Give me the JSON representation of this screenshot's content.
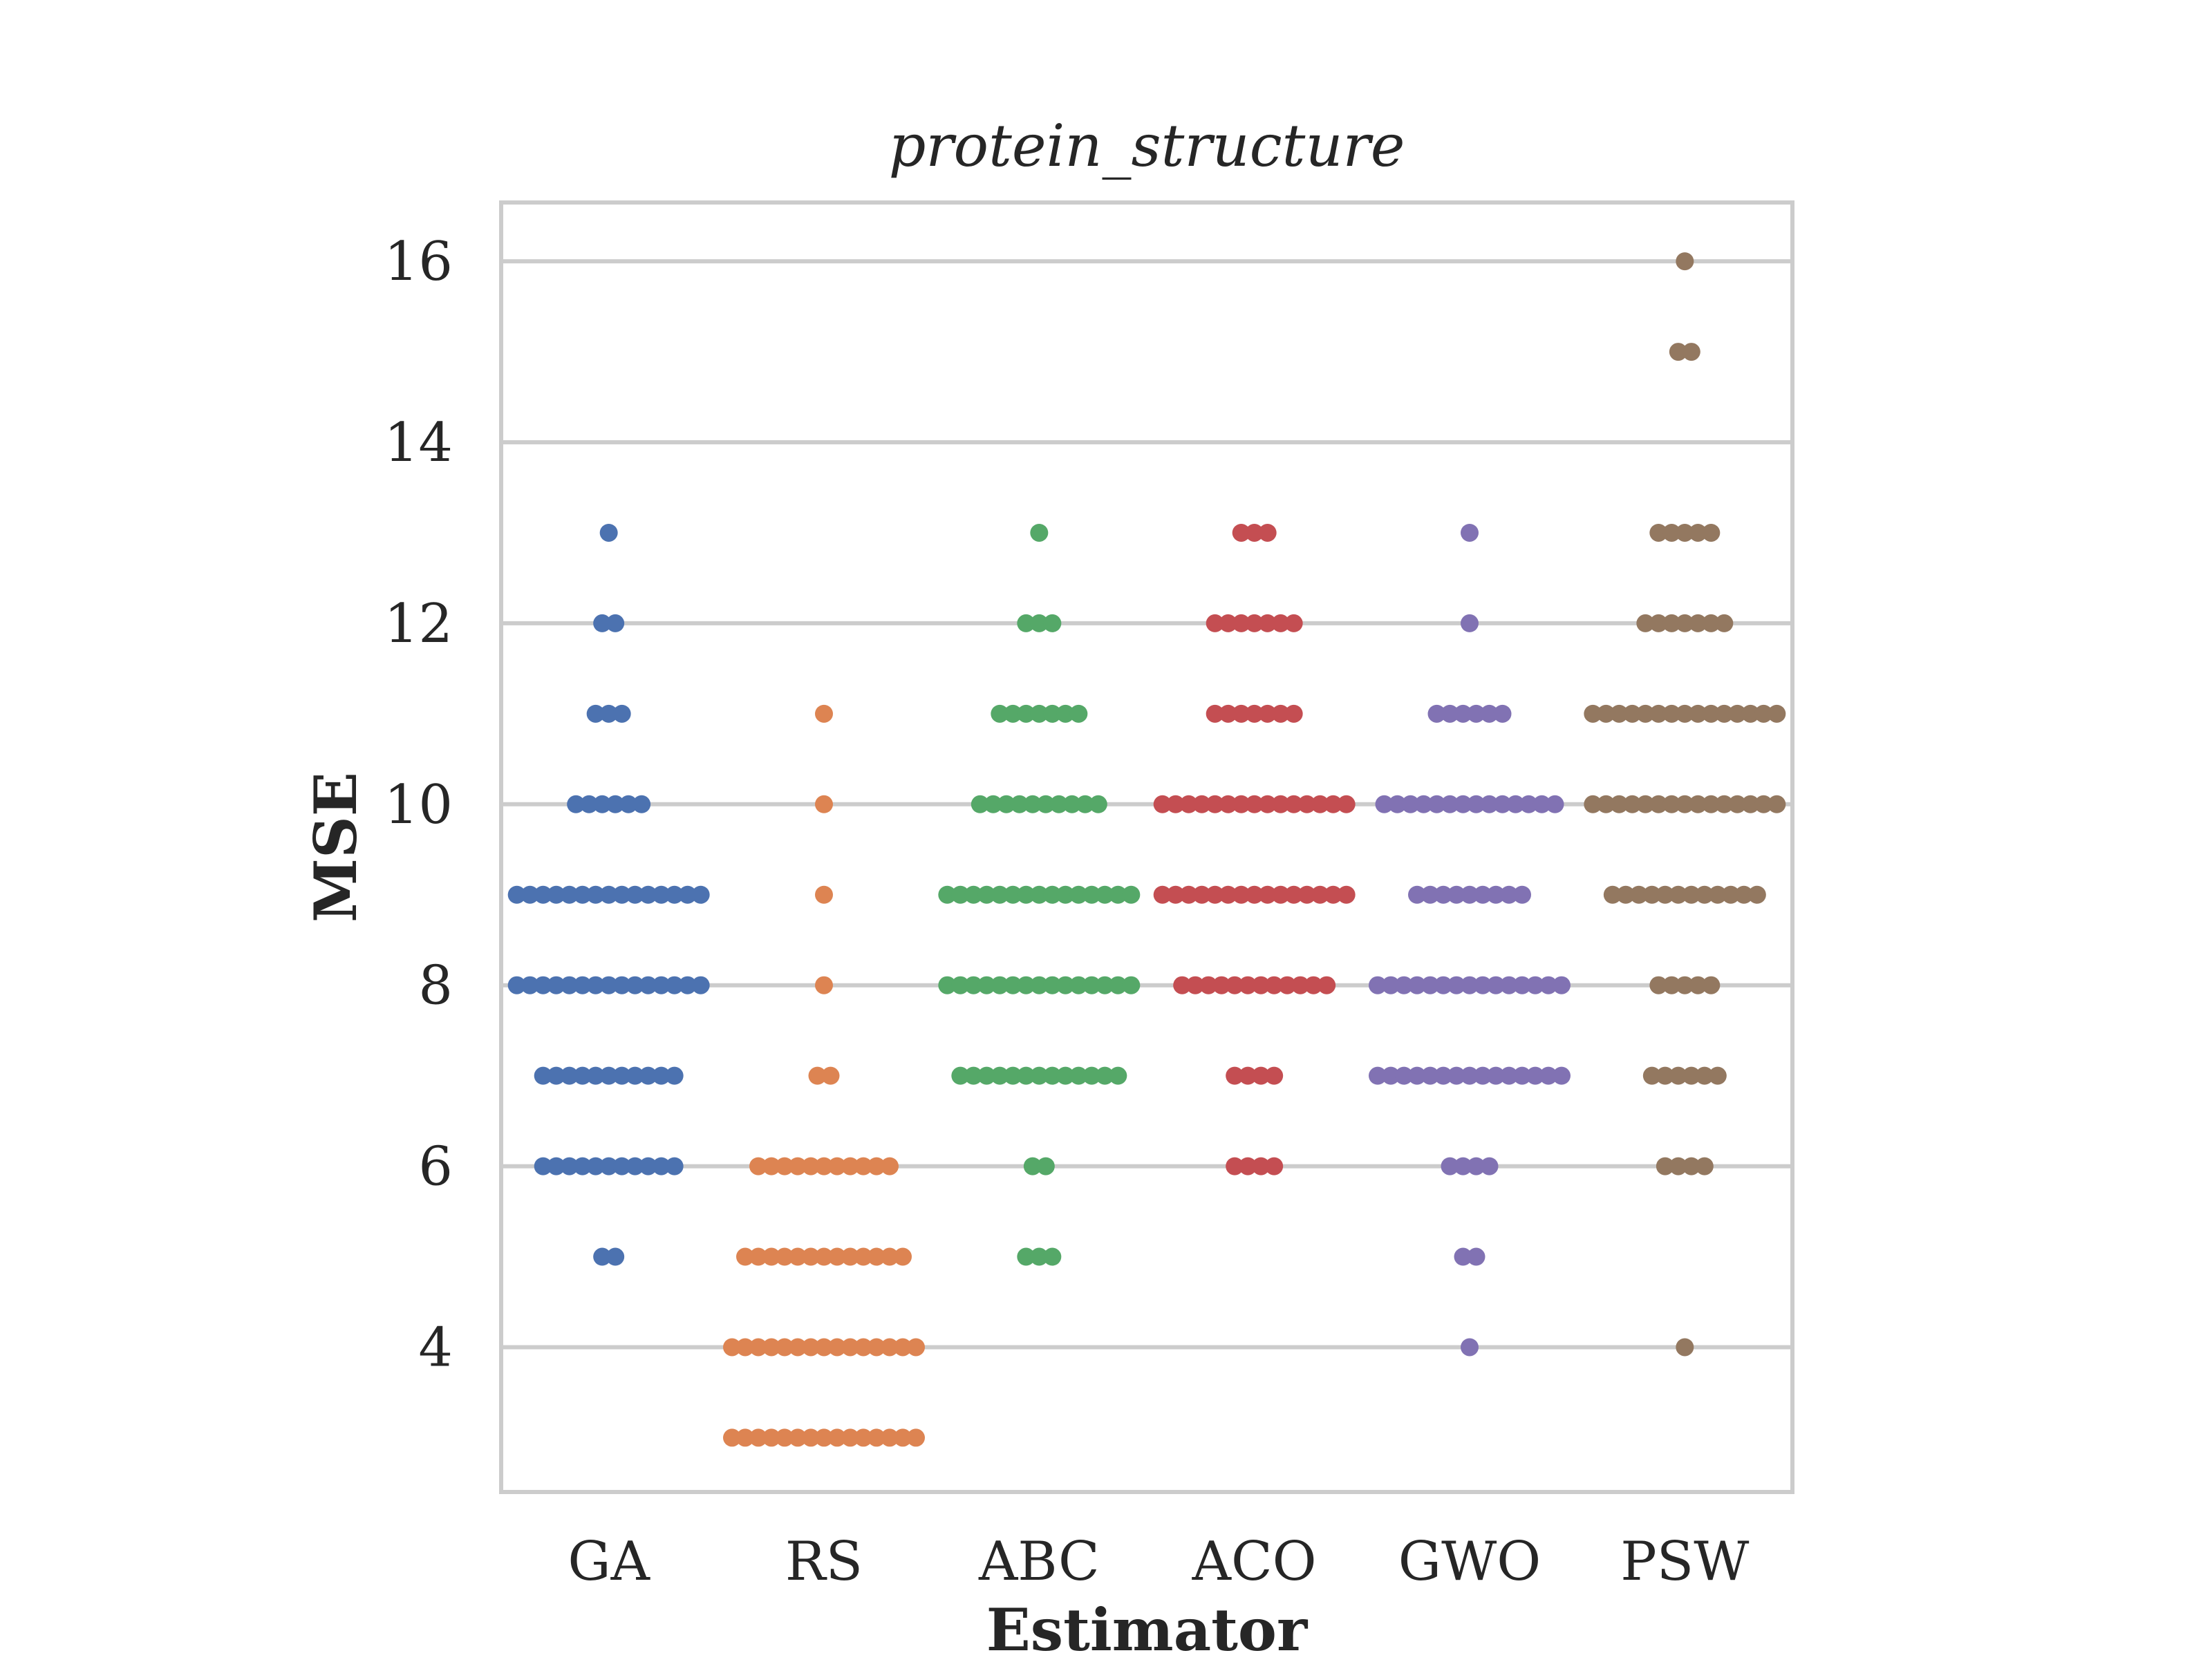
{
  "chart_data": {
    "type": "scatter",
    "subtype": "swarm",
    "title": "protein_structure",
    "xlabel": "Estimator",
    "ylabel": "MSE",
    "categories": [
      "GA",
      "RS",
      "ABC",
      "ACO",
      "GWO",
      "PSW"
    ],
    "ylim": [
      2.4,
      16.65
    ],
    "yticks": [
      "4",
      "6",
      "8",
      "10",
      "12",
      "14",
      "16"
    ],
    "grid": "horizontal",
    "legend": "none",
    "series": [
      {
        "category": "GA",
        "color": "#4c72b0",
        "counts": [
          {
            "y": 13,
            "n": 1
          },
          {
            "y": 12,
            "n": 2
          },
          {
            "y": 11,
            "n": 3
          },
          {
            "y": 10,
            "n": 6
          },
          {
            "y": 9,
            "n": 15
          },
          {
            "y": 8,
            "n": 15
          },
          {
            "y": 7,
            "n": 11
          },
          {
            "y": 6,
            "n": 11
          },
          {
            "y": 5,
            "n": 2
          }
        ]
      },
      {
        "category": "RS",
        "color": "#dd8452",
        "counts": [
          {
            "y": 11,
            "n": 1
          },
          {
            "y": 10,
            "n": 1
          },
          {
            "y": 9,
            "n": 1
          },
          {
            "y": 8,
            "n": 1
          },
          {
            "y": 7,
            "n": 2
          },
          {
            "y": 6,
            "n": 11
          },
          {
            "y": 5,
            "n": 13
          },
          {
            "y": 4,
            "n": 15
          },
          {
            "y": 3,
            "n": 15
          }
        ]
      },
      {
        "category": "ABC",
        "color": "#55a868",
        "counts": [
          {
            "y": 13,
            "n": 1
          },
          {
            "y": 12,
            "n": 3
          },
          {
            "y": 11,
            "n": 7
          },
          {
            "y": 10,
            "n": 10
          },
          {
            "y": 9,
            "n": 15
          },
          {
            "y": 8,
            "n": 15
          },
          {
            "y": 7,
            "n": 13
          },
          {
            "y": 6,
            "n": 2
          },
          {
            "y": 5,
            "n": 3
          }
        ]
      },
      {
        "category": "ACO",
        "color": "#c44e52",
        "counts": [
          {
            "y": 13,
            "n": 3
          },
          {
            "y": 12,
            "n": 7
          },
          {
            "y": 11,
            "n": 7
          },
          {
            "y": 10,
            "n": 15
          },
          {
            "y": 9,
            "n": 15
          },
          {
            "y": 8,
            "n": 12
          },
          {
            "y": 7,
            "n": 4
          },
          {
            "y": 6,
            "n": 4
          }
        ]
      },
      {
        "category": "GWO",
        "color": "#8172b3",
        "counts": [
          {
            "y": 13,
            "n": 1
          },
          {
            "y": 12,
            "n": 1
          },
          {
            "y": 11,
            "n": 6
          },
          {
            "y": 10,
            "n": 14
          },
          {
            "y": 9,
            "n": 9
          },
          {
            "y": 8,
            "n": 15
          },
          {
            "y": 7,
            "n": 15
          },
          {
            "y": 6,
            "n": 4
          },
          {
            "y": 5,
            "n": 2
          },
          {
            "y": 4,
            "n": 1
          }
        ]
      },
      {
        "category": "PSW",
        "color": "#937860",
        "counts": [
          {
            "y": 16,
            "n": 1
          },
          {
            "y": 15,
            "n": 2
          },
          {
            "y": 13,
            "n": 5
          },
          {
            "y": 12,
            "n": 7
          },
          {
            "y": 11,
            "n": 15
          },
          {
            "y": 10,
            "n": 15
          },
          {
            "y": 9,
            "n": 12
          },
          {
            "y": 8,
            "n": 5
          },
          {
            "y": 7,
            "n": 6
          },
          {
            "y": 6,
            "n": 4
          },
          {
            "y": 4,
            "n": 1
          }
        ]
      }
    ]
  }
}
